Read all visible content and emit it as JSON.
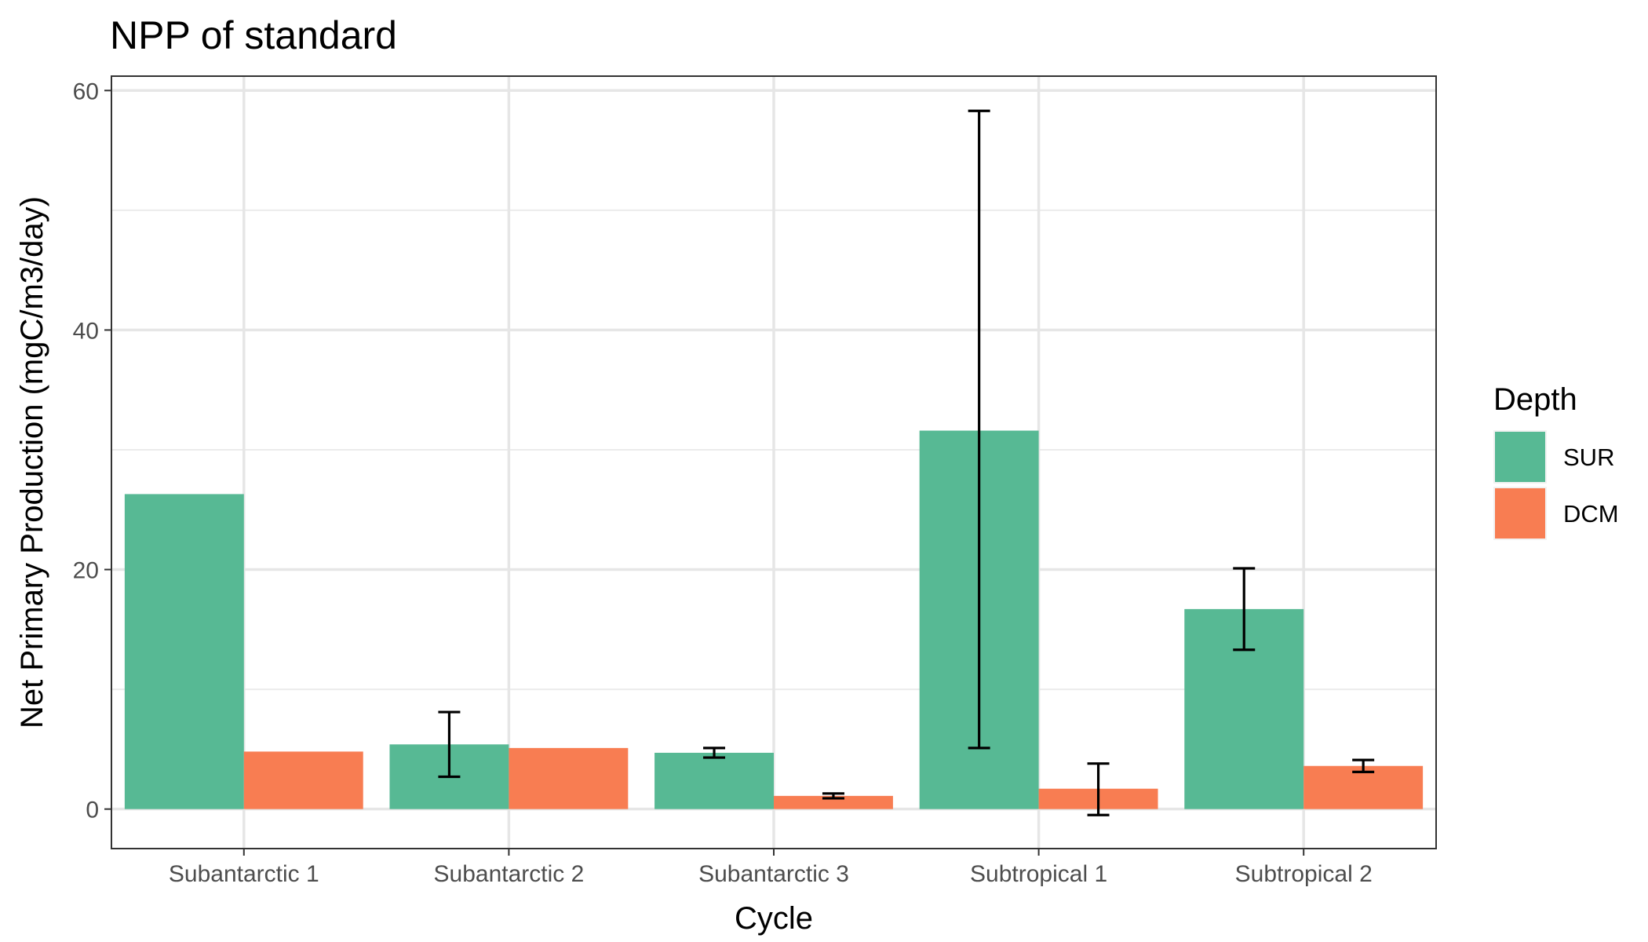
{
  "chart_data": {
    "type": "bar",
    "title": "NPP of standard",
    "xlabel": "Cycle",
    "ylabel": "Net Primary Production (mgC/m3/day)",
    "categories": [
      "Subantarctic 1",
      "Subantarctic 2",
      "Subantarctic 3",
      "Subtropical 1",
      "Subtropical 2"
    ],
    "yticks": [
      "0",
      "20",
      "40",
      "60"
    ],
    "ylim": [
      -3.3,
      61.2
    ],
    "legend": {
      "title": "Depth",
      "position": "right"
    },
    "series": [
      {
        "name": "SUR",
        "color": "#57B994",
        "values": [
          26.3,
          5.4,
          4.7,
          31.6,
          16.7
        ],
        "error_low": [
          null,
          2.7,
          4.3,
          5.1,
          13.3
        ],
        "error_high": [
          null,
          8.1,
          5.1,
          58.3,
          20.1
        ]
      },
      {
        "name": "DCM",
        "color": "#F87D52",
        "values": [
          4.8,
          5.1,
          1.1,
          1.7,
          3.6
        ],
        "error_low": [
          null,
          null,
          0.9,
          -0.5,
          3.1
        ],
        "error_high": [
          null,
          null,
          1.3,
          3.8,
          4.1
        ]
      }
    ],
    "grid": true,
    "theme": "bw"
  }
}
